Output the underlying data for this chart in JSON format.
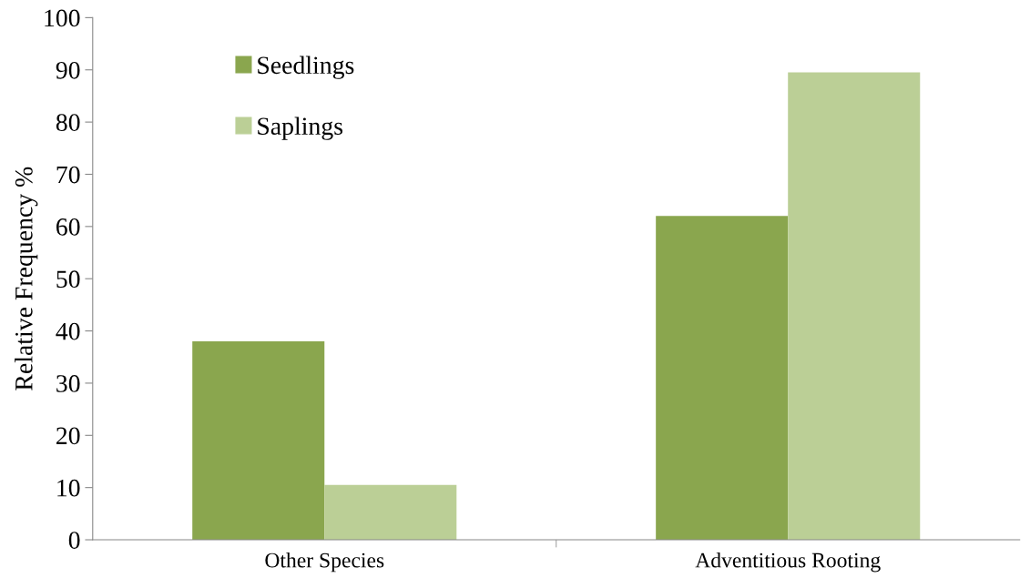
{
  "chart_data": {
    "type": "bar",
    "ylabel": "Relative Frequency %",
    "categories": [
      "Other Species",
      "Adventitious Rooting"
    ],
    "series": [
      {
        "name": "Seedlings",
        "color": "#8aa64e",
        "values": [
          38,
          62
        ]
      },
      {
        "name": "Saplings",
        "color": "#bbcf96",
        "values": [
          10.5,
          89.5
        ]
      }
    ],
    "ylim": [
      0,
      100
    ],
    "yticks": [
      0,
      10,
      20,
      30,
      40,
      50,
      60,
      70,
      80,
      90,
      100
    ],
    "grid": false,
    "legend": "top left"
  }
}
